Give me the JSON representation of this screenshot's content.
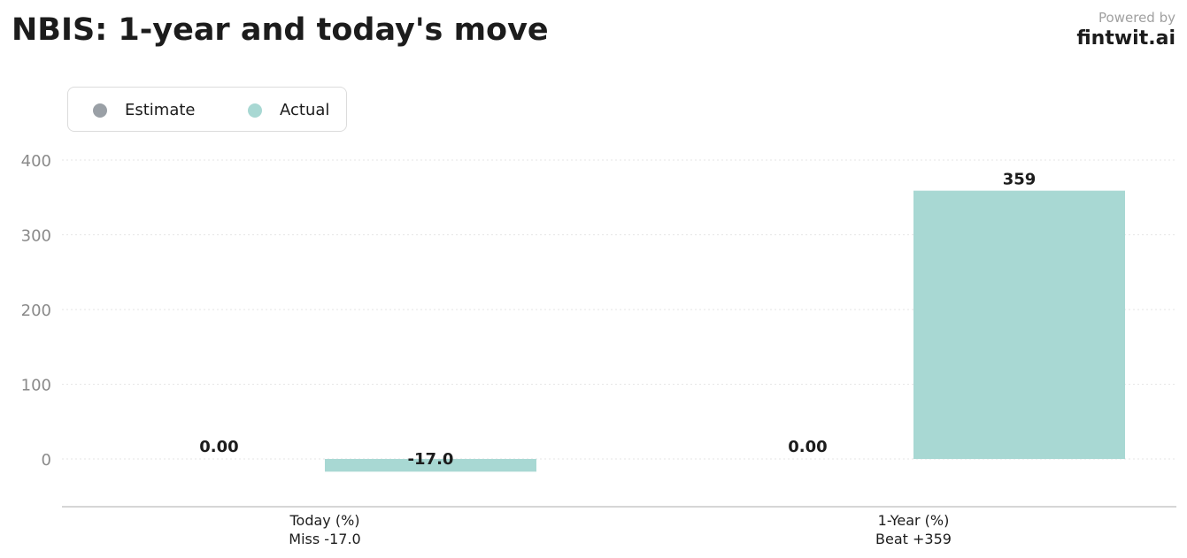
{
  "header": {
    "title": "NBIS: 1-year and today's move",
    "powered_by": "Powered by",
    "brand": "fintwit.ai"
  },
  "chart_data": {
    "type": "bar",
    "title": "NBIS: 1-year and today's move",
    "categories": [
      "Today (%)",
      "1-Year (%)"
    ],
    "category_sublabels": [
      "Miss -17.0",
      "Beat +359"
    ],
    "series": [
      {
        "name": "Estimate",
        "values": [
          0.0,
          0.0
        ],
        "labels": [
          "0.00",
          "0.00"
        ],
        "color": "#9aa0a6"
      },
      {
        "name": "Actual",
        "values": [
          -17.0,
          359
        ],
        "labels": [
          "-17.0",
          "359"
        ],
        "color": "#a8d8d3"
      }
    ],
    "yticks": [
      0,
      100,
      200,
      300,
      400
    ],
    "ylim": [
      -65,
      400
    ],
    "grid": true,
    "legend_position": "top-left"
  }
}
